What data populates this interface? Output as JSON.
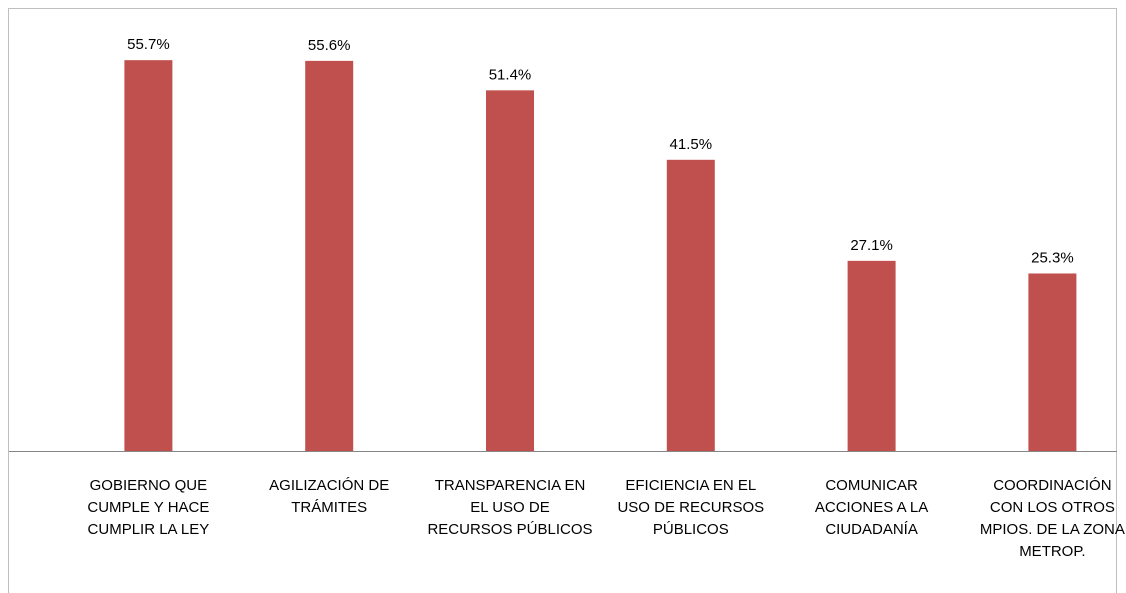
{
  "chart_data": {
    "type": "bar",
    "categories": [
      "GOBIERNO QUE\nCUMPLE Y HACE\nCUMPLIR LA LEY",
      "AGILIZACIÓN DE\nTRÁMITES",
      "TRANSPARENCIA EN\nEL USO DE\nRECURSOS PÚBLICOS",
      "EFICIENCIA  EN EL\nUSO DE RECURSOS\nPÚBLICOS",
      "COMUNICAR\nACCIONES A LA\nCIUDADANÍA",
      "COORDINACIÓN\nCON LOS OTROS\nMPIOS. DE LA ZONA\nMETROP."
    ],
    "values": [
      55.7,
      55.6,
      51.4,
      41.5,
      27.1,
      25.3
    ],
    "value_labels": [
      "55.7%",
      "55.6%",
      "51.4%",
      "41.5%",
      "27.1%",
      "25.3%"
    ],
    "color": "#c0504d",
    "ylim": [
      0,
      60
    ]
  }
}
